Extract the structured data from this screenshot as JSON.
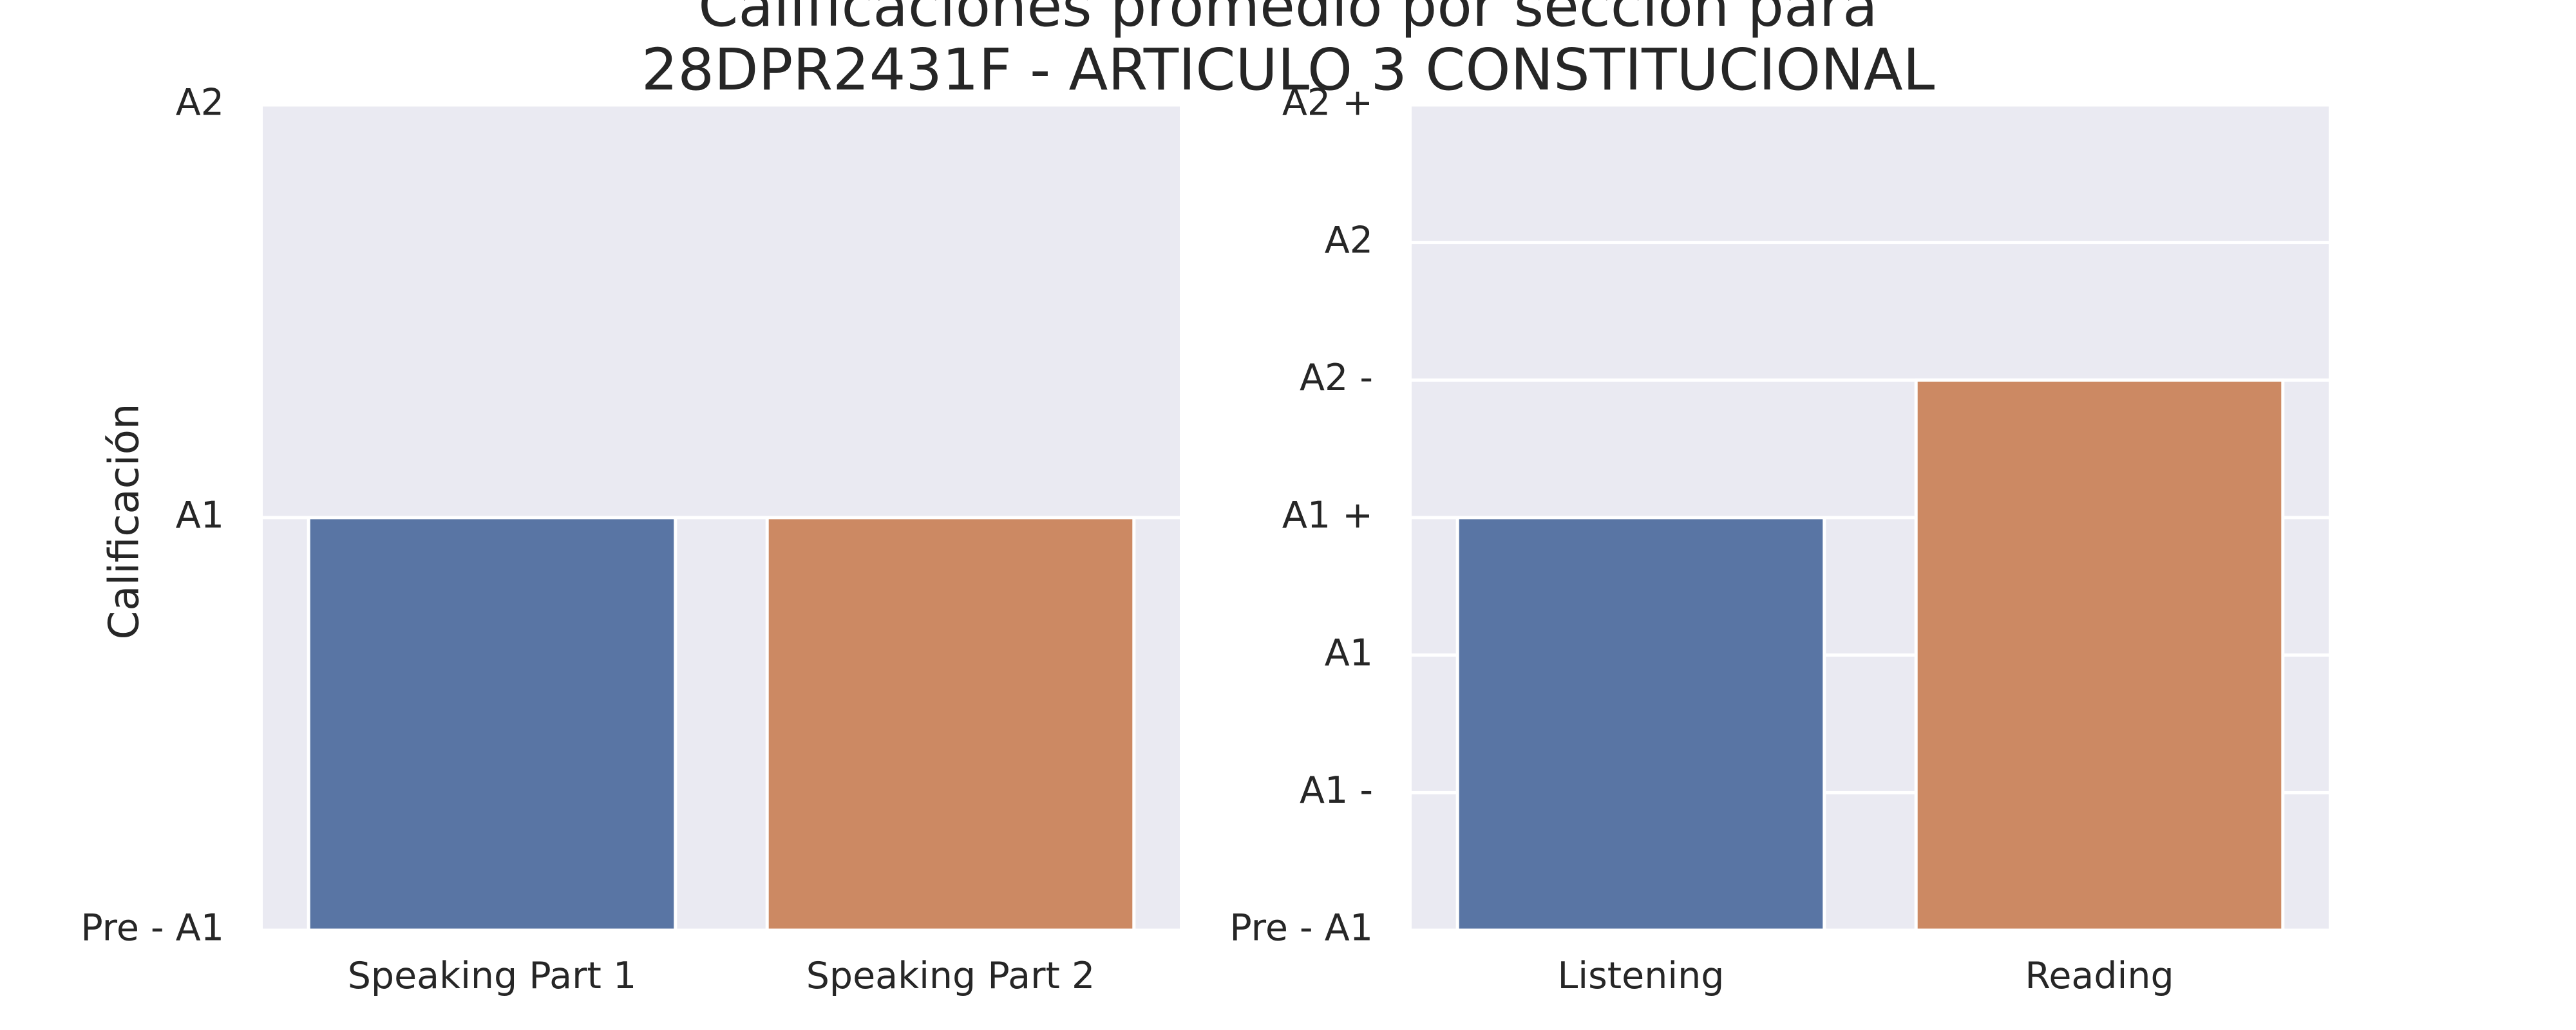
{
  "chart_data": [
    {
      "type": "bar",
      "title_lines": [
        "Calificaciones promedio por sección para",
        "28DPR2431F - ARTICULO 3 CONSTITUCIONAL"
      ],
      "ylabel": "Calificación",
      "xlabel": "",
      "categories": [
        "Speaking Part 1",
        "Speaking Part 2"
      ],
      "values": [
        1,
        1
      ],
      "y_ticks": [
        {
          "value": 0,
          "label": "Pre - A1"
        },
        {
          "value": 1,
          "label": "A1"
        },
        {
          "value": 2,
          "label": "A2"
        }
      ],
      "ylim": [
        0,
        2
      ],
      "grid": true,
      "colors": [
        "#5975a4",
        "#cc8963"
      ]
    },
    {
      "type": "bar",
      "ylabel": "",
      "xlabel": "",
      "categories": [
        "Listening",
        "Reading"
      ],
      "values": [
        3,
        4
      ],
      "y_ticks": [
        {
          "value": 0,
          "label": "Pre - A1"
        },
        {
          "value": 1,
          "label": "A1 -"
        },
        {
          "value": 2,
          "label": "A1"
        },
        {
          "value": 3,
          "label": "A1 +"
        },
        {
          "value": 4,
          "label": "A2 -"
        },
        {
          "value": 5,
          "label": "A2"
        },
        {
          "value": 6,
          "label": "A2 +"
        }
      ],
      "ylim": [
        0,
        6
      ],
      "grid": true,
      "colors": [
        "#5975a4",
        "#cc8963"
      ]
    }
  ],
  "style": {
    "plot_bg": "#eaeaf2",
    "grid_color": "#ffffff"
  }
}
